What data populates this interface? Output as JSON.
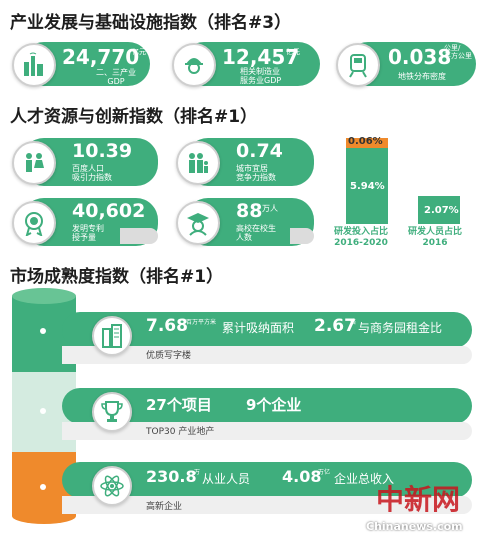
{
  "section1": {
    "title": "产业发展与基础设施指数（排名#3）",
    "cards": [
      {
        "value": "24,770",
        "unit": "亿元",
        "label": "二、三产业\nGDP",
        "icon": "factory-icon"
      },
      {
        "value": "12,457",
        "unit": "亿元",
        "label": "相关制造业\n服务业GDP",
        "icon": "worker-icon"
      },
      {
        "value": "0.038",
        "unit": "公里/\n平方公里",
        "label": "地铁分布密度",
        "icon": "train-icon"
      }
    ]
  },
  "section2": {
    "title": "人才资源与创新指数（排名#1）",
    "cards": [
      {
        "value": "10.39",
        "unit": "",
        "label": "百度人口\n吸引力指数",
        "icon": "people-icon"
      },
      {
        "value": "0.74",
        "unit": "",
        "label": "城市宜居\n竞争力指数",
        "icon": "family-icon"
      },
      {
        "value": "40,602",
        "unit": "",
        "label": "发明专利\n授予量",
        "icon": "medal-icon"
      },
      {
        "value": "88",
        "unit": "万人",
        "label": "高校在校生\n人数",
        "icon": "graduate-icon"
      }
    ],
    "bars": [
      {
        "top_value": "0.06%",
        "value": "5.94%",
        "label": "研发投入占比\n2016-2020"
      },
      {
        "value": "2.07%",
        "label": "研发人员占比\n2016"
      }
    ]
  },
  "section3": {
    "title": "市场成熟度指数（排名#1）",
    "rows": [
      {
        "v1": "7.68",
        "u1": "百万平方米",
        "t1": "累计吸纳面积",
        "v2": "2.67",
        "u2": "倍",
        "t2": "与商务园租金比",
        "label": "优质写字楼",
        "icon": "building-icon"
      },
      {
        "v1": "27个项目",
        "u1": "",
        "t1": "",
        "v2": "9个企业",
        "u2": "",
        "t2": "",
        "label": "TOP30 产业地产",
        "icon": "trophy-icon"
      },
      {
        "v1": "230.8",
        "u1": "万",
        "t1": "从业人员",
        "v2": "4.08",
        "u2": "万亿",
        "t2": "企业总收入",
        "label": "高新企业",
        "icon": "atom-icon"
      }
    ]
  },
  "watermark": {
    "logo": "中新网",
    "site": "Chinanews.com"
  },
  "colors": {
    "green": "#3fae7d",
    "orange": "#ef8a2c",
    "lightgreen": "#cfe6d9",
    "gray": "#e2e2e2"
  }
}
